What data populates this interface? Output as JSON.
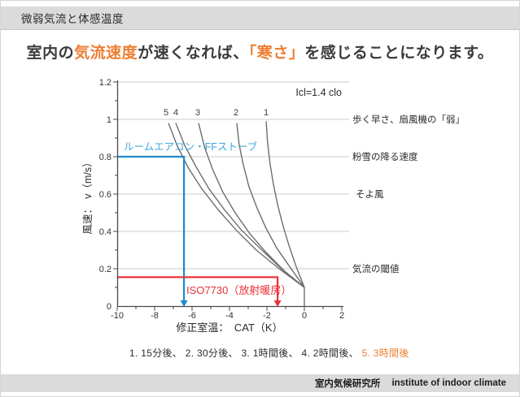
{
  "window": {
    "title": "微弱気流と体感温度"
  },
  "heading": {
    "part1": "室内の",
    "accent1": "気流速度",
    "part2": "が速くなれば、",
    "accent2": "「寒さ」",
    "part3": "を感じることになります。"
  },
  "note": {
    "black": "1.  15分後、 2.  30分後、 3.  1時間後、 4.  2時間後、 ",
    "orange": "5.  3時間後"
  },
  "footer": {
    "org_ja": "室内気候研究所",
    "org_en": "institute of indoor climate"
  },
  "chart_data": {
    "type": "line",
    "annotation": "Icl=1.4 clo",
    "xlabel": "修正室温：　CAT（K）",
    "ylabel": "風速：　v（m/s）",
    "xlim": [
      -10,
      2
    ],
    "ylim": [
      0,
      1.2
    ],
    "grid": true,
    "x_tick_labels": [
      "-10",
      "-8",
      "-6",
      "-4",
      "-2",
      "0",
      "2"
    ],
    "y_tick_labels": [
      "1.2",
      "1",
      "0.8",
      "0.6",
      "0.4",
      "0.2",
      "0"
    ],
    "curve_color": "#6E6E6E",
    "series": [
      {
        "name": "1",
        "meaning": "15分後",
        "points": [
          [
            -2.04,
            0.99
          ],
          [
            -1.97,
            0.88
          ],
          [
            -1.83,
            0.76
          ],
          [
            -1.65,
            0.65
          ],
          [
            -1.42,
            0.54
          ],
          [
            -1.14,
            0.43
          ],
          [
            -0.81,
            0.32
          ],
          [
            -0.43,
            0.21
          ],
          [
            0,
            0.1
          ]
        ]
      },
      {
        "name": "2",
        "meaning": "30分後",
        "points": [
          [
            -3.61,
            0.98
          ],
          [
            -3.49,
            0.87
          ],
          [
            -3.27,
            0.76
          ],
          [
            -2.96,
            0.64
          ],
          [
            -2.55,
            0.53
          ],
          [
            -2.06,
            0.42
          ],
          [
            -1.47,
            0.31
          ],
          [
            -0.78,
            0.21
          ],
          [
            0,
            0.1
          ]
        ]
      },
      {
        "name": "3",
        "meaning": "1時間後",
        "points": [
          [
            -5.65,
            0.98
          ],
          [
            -5.33,
            0.85
          ],
          [
            -4.89,
            0.73
          ],
          [
            -4.35,
            0.61
          ],
          [
            -3.7,
            0.5
          ],
          [
            -2.93,
            0.39
          ],
          [
            -2.07,
            0.29
          ],
          [
            -1.09,
            0.19
          ],
          [
            0,
            0.1
          ]
        ]
      },
      {
        "name": "4",
        "meaning": "2時間後",
        "points": [
          [
            -6.87,
            0.98
          ],
          [
            -6.39,
            0.86
          ],
          [
            -5.81,
            0.75
          ],
          [
            -5.11,
            0.63
          ],
          [
            -4.3,
            0.52
          ],
          [
            -3.39,
            0.41
          ],
          [
            -2.37,
            0.31
          ],
          [
            -1.23,
            0.2
          ],
          [
            0,
            0.1
          ]
        ]
      },
      {
        "name": "5",
        "meaning": "3時間後",
        "points": [
          [
            -7.26,
            0.98
          ],
          [
            -6.8,
            0.86
          ],
          [
            -6.2,
            0.74
          ],
          [
            -5.49,
            0.63
          ],
          [
            -4.64,
            0.52
          ],
          [
            -3.67,
            0.41
          ],
          [
            -2.57,
            0.3
          ],
          [
            -1.35,
            0.2
          ],
          [
            0,
            0.1
          ]
        ]
      }
    ],
    "convergence_tail": [
      [
        0,
        0.1
      ],
      [
        0,
        0
      ]
    ],
    "reference_lines": [
      {
        "id": "room-aircon",
        "label": "ルームエアコン・FFストーブ",
        "v": 0.8,
        "cat_end": -6.43,
        "color": "#1E8BC9",
        "label_color": "#42A6DC"
      },
      {
        "id": "iso7730",
        "label": "ISO7730（放射暖房）",
        "v": 0.155,
        "cat_end": -1.43,
        "color": "#E93238",
        "label_color": "#E93238"
      }
    ],
    "right_labels": [
      {
        "text": "歩く早さ、扇風機の「弱」",
        "v": 1.0
      },
      {
        "text": "粉雪の降る速度",
        "v": 0.8
      },
      {
        "text": "そよ風",
        "v": 0.6
      },
      {
        "text": "気流の閾値",
        "v": 0.2
      }
    ]
  }
}
